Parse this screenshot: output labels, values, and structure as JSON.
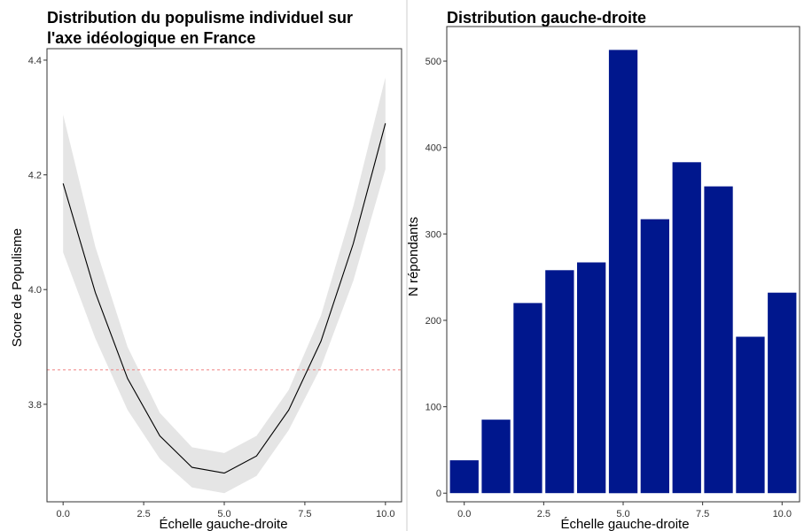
{
  "chart_data": [
    {
      "type": "line",
      "title": "Distribution du populisme individuel sur l'axe idéologique en France",
      "title_lines": [
        "Distribution du populisme individuel sur",
        "l'axe idéologique en France"
      ],
      "xlabel": "Échelle gauche-droite",
      "ylabel": "Score de Populisme",
      "xlim": [
        -0.5,
        10.5
      ],
      "ylim": [
        3.63,
        4.42
      ],
      "x_ticks": [
        "0.0",
        "2.5",
        "5.0",
        "7.5",
        "10.0"
      ],
      "y_ticks": [
        "3.8",
        "4.0",
        "4.2",
        "4.4"
      ],
      "x": [
        0,
        1,
        2,
        3,
        4,
        5,
        6,
        7,
        8,
        9,
        10
      ],
      "series": [
        {
          "values": [
            4.185,
            3.995,
            3.845,
            3.745,
            3.69,
            3.68,
            3.71,
            3.79,
            3.91,
            4.08,
            4.29
          ],
          "ci_lower": [
            4.065,
            3.915,
            3.79,
            3.705,
            3.655,
            3.645,
            3.675,
            3.755,
            3.865,
            4.015,
            4.21
          ],
          "ci_upper": [
            4.305,
            4.075,
            3.9,
            3.785,
            3.725,
            3.715,
            3.745,
            3.825,
            3.955,
            4.145,
            4.37
          ]
        }
      ],
      "reference_line": {
        "y": 3.86,
        "style": "dashed",
        "color": "#f08080"
      },
      "colors": {
        "line": "#000000",
        "ribbon": "#e5e5e5"
      },
      "grid": false
    },
    {
      "type": "bar",
      "title": "Distribution gauche-droite",
      "xlabel": "Échelle gauche-droite",
      "ylabel": "N répondants",
      "xlim": [
        -0.55,
        10.55
      ],
      "ylim": [
        -10,
        540
      ],
      "x_ticks": [
        "0.0",
        "2.5",
        "5.0",
        "7.5",
        "10.0"
      ],
      "y_ticks": [
        "0",
        "100",
        "200",
        "300",
        "400",
        "500"
      ],
      "categories": [
        0,
        1,
        2,
        3,
        4,
        5,
        6,
        7,
        8,
        9,
        10
      ],
      "values": [
        38,
        85,
        220,
        258,
        267,
        513,
        317,
        383,
        355,
        181,
        232
      ],
      "colors": {
        "bar": "#00178d"
      },
      "grid": false
    }
  ]
}
